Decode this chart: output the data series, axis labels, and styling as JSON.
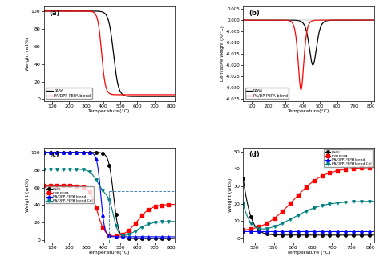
{
  "colors": {
    "PA66": "black",
    "DPP_PEPA": "red",
    "blend": "blue",
    "blend_cal": "#008080"
  },
  "panel_a": {
    "xlabel": "Temperature(°C)",
    "ylabel": "Weight (wt%)",
    "xlim": [
      50,
      820
    ],
    "ylim": [
      -2,
      105
    ],
    "xticks": [
      100,
      200,
      300,
      400,
      500,
      600,
      700,
      800
    ],
    "yticks": [
      0,
      20,
      40,
      60,
      80,
      100
    ],
    "legend": [
      "PA66",
      "PA/DPP-PEPA blend"
    ],
    "label": "(a)"
  },
  "panel_b": {
    "xlabel": "Temperature(°C)",
    "ylabel": "Derivative Weight (%/°C)",
    "xlim": [
      50,
      820
    ],
    "ylim": [
      -0.036,
      0.006
    ],
    "xticks": [
      100,
      200,
      300,
      400,
      500,
      600,
      700,
      800
    ],
    "yticks": [
      0.005,
      0.0,
      -0.005,
      -0.01,
      -0.015,
      -0.02,
      -0.025,
      -0.03,
      -0.035
    ],
    "legend": [
      "PA66",
      "PA/DP-PEPA blend"
    ],
    "label": "(b)"
  },
  "panel_c": {
    "xlabel": "Temperature(°C)",
    "ylabel": "Weight (wt%)",
    "xlim": [
      50,
      820
    ],
    "ylim": [
      -2,
      105
    ],
    "xticks": [
      100,
      200,
      300,
      400,
      500,
      600,
      700,
      800
    ],
    "yticks": [
      0,
      20,
      40,
      60,
      80,
      100
    ],
    "legend": [
      "PA66",
      "DPP-PEPA",
      "PA/DPP-PEPA blend",
      "PA/DPP-PEPA blend Cal"
    ],
    "label": "(c)",
    "dashed_x": 435,
    "dashed_y": 56
  },
  "panel_d": {
    "xlabel": "Temperature (°C)",
    "ylabel": "Weight (wt%)",
    "xlim": [
      470,
      810
    ],
    "ylim": [
      -2,
      52
    ],
    "xticks": [
      500,
      550,
      600,
      650,
      700,
      750,
      800
    ],
    "yticks": [
      0,
      10,
      20,
      30,
      40,
      50
    ],
    "legend": [
      "PA66",
      "DPP-PEPA",
      "PA/DPP-PEPA blend",
      "PA/DPP-PEPA blend Cal"
    ],
    "label": "(d)"
  }
}
